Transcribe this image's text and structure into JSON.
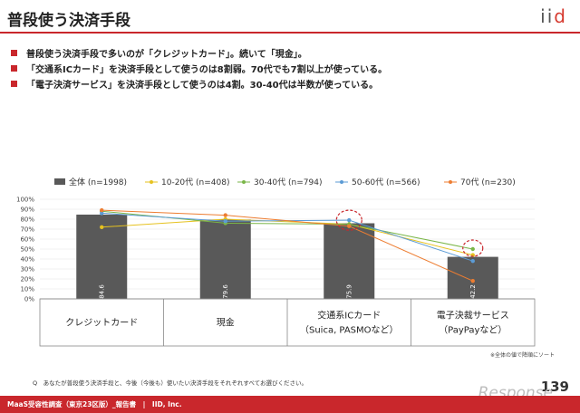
{
  "header": {
    "title": "普段使う決済手段",
    "logo": "iid"
  },
  "bullets": [
    "普段使う決済手段で多いのが「クレジットカード」。続いて「現金」。",
    "「交通系ICカード」を決済手段として使うのは8割弱。70代でも7割以上が使っている。",
    "「電子決済サービス」を決済手段として使うのは4割。30-40代は半数が使っている。"
  ],
  "chart_data": {
    "type": "bar",
    "categories": [
      [
        "クレジットカード"
      ],
      [
        "現金"
      ],
      [
        "交通系ICカード",
        "（Suica, PASMOなど）"
      ],
      [
        "電子決裁サービス",
        "（PayPayなど）"
      ]
    ],
    "bar_series": {
      "name": "全体 (n=1998)",
      "values": [
        84.6,
        79.6,
        75.9,
        42.2
      ],
      "color": "#595959"
    },
    "series": [
      {
        "name": "10-20代 (n=408)",
        "values": [
          72,
          80,
          75,
          44
        ],
        "color": "#e6c21f"
      },
      {
        "name": "30-40代 (n=794)",
        "values": [
          88,
          76,
          75,
          50
        ],
        "color": "#7ab648"
      },
      {
        "name": "50-60代 (n=566)",
        "values": [
          86,
          78,
          79,
          38
        ],
        "color": "#5b9bd5"
      },
      {
        "name": "70代 (n=230)",
        "values": [
          89,
          84,
          73,
          18
        ],
        "color": "#ed7d31"
      }
    ],
    "ylim": [
      0,
      100
    ],
    "yticks": [
      "0%",
      "10%",
      "20%",
      "30%",
      "40%",
      "50%",
      "60%",
      "70%",
      "80%",
      "90%",
      "100%"
    ],
    "highlight_color": "#c9272c"
  },
  "notes": {
    "sort": "※全体の値で降順にソート",
    "question": "Q　あなたが普段使う決済手段と、今後（今後も）使いたい決済手段をそれぞれすべてお選びください。"
  },
  "footer": {
    "text": "MaaS受容性調査（東京23区版）_報告書　|　IID, Inc.",
    "page": "139",
    "watermark": "Response"
  }
}
